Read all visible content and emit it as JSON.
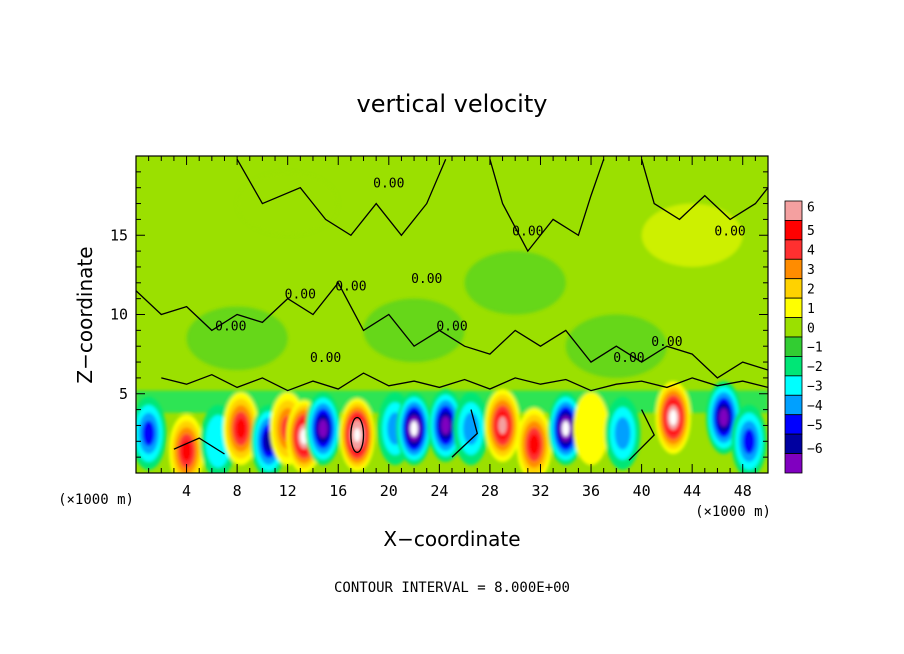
{
  "chart_data": {
    "type": "heatmap",
    "title": "vertical velocity",
    "xlabel": "X−coordinate",
    "ylabel": "Z−coordinate",
    "x_unit_label": "(×1000 m)",
    "x_unit_label_right": "(×1000 m)",
    "xlim": [
      0,
      50
    ],
    "ylim": [
      0,
      20
    ],
    "x_ticks": [
      4,
      8,
      12,
      16,
      20,
      24,
      28,
      32,
      36,
      40,
      44,
      48
    ],
    "y_ticks": [
      5,
      10,
      15
    ],
    "colorbar": {
      "min": -6,
      "max": 6,
      "tick_labels": [
        "6",
        "5",
        "4",
        "3",
        "2",
        "1",
        "0",
        "−1",
        "−2",
        "−3",
        "−4",
        "−5",
        "−6"
      ],
      "colors": [
        "#f4a0a0",
        "#ff0000",
        "#ff3030",
        "#ff8c00",
        "#ffd200",
        "#ffff00",
        "#9be000",
        "#32cd32",
        "#00e676",
        "#00ffff",
        "#00a0ff",
        "#0000ff",
        "#0000a0",
        "#8000c0"
      ]
    },
    "contour_label": "0.00",
    "contour_interval_text": "CONTOUR INTERVAL = 8.000E+00",
    "features": [
      {
        "x": 1,
        "z": 2.5,
        "w": -3.5
      },
      {
        "x": 4,
        "z": 1.4,
        "w": 4.5
      },
      {
        "x": 6.5,
        "z": 2.0,
        "w": -2.5
      },
      {
        "x": 8.3,
        "z": 2.8,
        "w": 5.0
      },
      {
        "x": 10.5,
        "z": 2.0,
        "w": -4.5
      },
      {
        "x": 12.0,
        "z": 2.8,
        "w": 3.5
      },
      {
        "x": 13.3,
        "z": 2.3,
        "w": 6.5
      },
      {
        "x": 14.8,
        "z": 2.8,
        "w": -5.5
      },
      {
        "x": 17.5,
        "z": 2.4,
        "w": 8.0
      },
      {
        "x": 20.5,
        "z": 2.8,
        "w": -3.0
      },
      {
        "x": 22.0,
        "z": 2.8,
        "w": -6.5
      },
      {
        "x": 24.5,
        "z": 3.0,
        "w": -6.0
      },
      {
        "x": 26.5,
        "z": 2.8,
        "w": -3.0
      },
      {
        "x": 29.0,
        "z": 3.0,
        "w": 5.5
      },
      {
        "x": 31.5,
        "z": 1.8,
        "w": 5.0
      },
      {
        "x": 34.0,
        "z": 2.8,
        "w": -6.5
      },
      {
        "x": 36.0,
        "z": 2.8,
        "w": 1.5
      },
      {
        "x": 38.5,
        "z": 2.5,
        "w": -3.0
      },
      {
        "x": 42.5,
        "z": 3.5,
        "w": 6.5
      },
      {
        "x": 46.5,
        "z": 3.5,
        "w": -5.5
      },
      {
        "x": 48.5,
        "z": 2.0,
        "w": -3.5
      }
    ]
  }
}
